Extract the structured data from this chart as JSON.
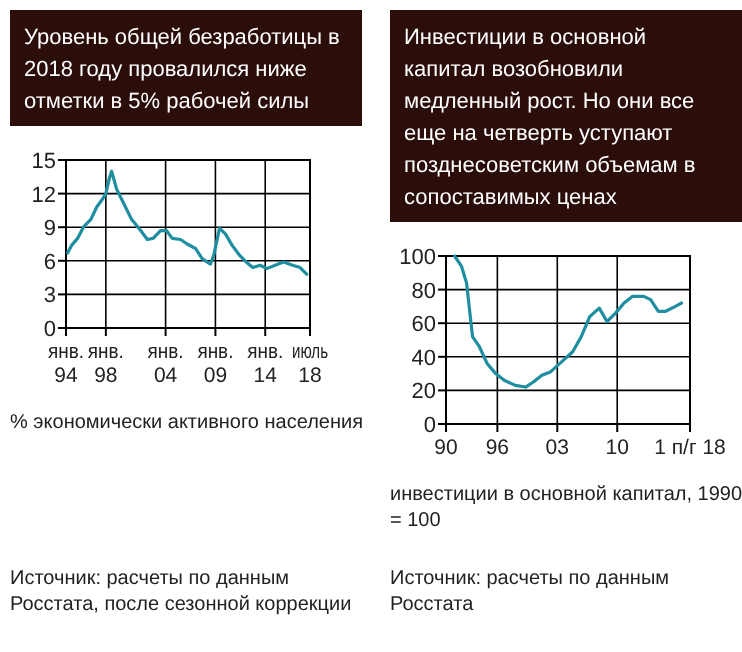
{
  "chart_data": [
    {
      "type": "line",
      "title": "Уровень общей безработицы в 2018 году провалился ниже отметки в 5% рабочей силы",
      "xlabel": "% экономически активного населения",
      "annotations": [
        "Источник: расчеты по данным Росстата, после сезонной коррекции"
      ],
      "x": [
        "1994-03",
        "1994-08",
        "1995-03",
        "1995-10",
        "1996-07",
        "1997-02",
        "1997-08",
        "1998-01",
        "1998-05",
        "1998-08",
        "1999-02",
        "1999-10",
        "2000-08",
        "2001-07",
        "2002-03",
        "2002-10",
        "2003-07",
        "2004-02",
        "2004-09",
        "2005-07",
        "2006-03",
        "2007-01",
        "2007-09",
        "2008-07",
        "2008-11",
        "2009-06",
        "2010-01",
        "2010-09",
        "2011-06",
        "2012-02",
        "2012-10",
        "2013-07",
        "2014-03",
        "2015-01",
        "2015-11",
        "2016-10",
        "2017-07",
        "2018-03"
      ],
      "series": [
        {
          "color": "#1f8ea0",
          "values": [
            6.7,
            7.4,
            8.0,
            9.0,
            9.7,
            10.8,
            11.4,
            12.0,
            13.3,
            14.0,
            12.4,
            11.2,
            9.7,
            8.7,
            7.9,
            8.0,
            8.7,
            8.7,
            8.0,
            7.9,
            7.5,
            7.1,
            6.2,
            5.7,
            6.5,
            8.9,
            8.4,
            7.4,
            6.5,
            5.9,
            5.4,
            5.6,
            5.3,
            5.6,
            5.9,
            5.6,
            5.4,
            4.8
          ]
        }
      ],
      "xlim": [
        "1994-01",
        "2018-07"
      ],
      "xticks": [
        {
          "value": "1994-01",
          "label": "янв.\n94"
        },
        {
          "value": "1998-01",
          "label": "янв.\n98"
        },
        {
          "value": "2004-01",
          "label": "янв.\n04"
        },
        {
          "value": "2009-01",
          "label": "янв.\n09"
        },
        {
          "value": "2014-01",
          "label": "янв.\n14"
        },
        {
          "value": "2018-07",
          "label": "июль\n18"
        }
      ],
      "ylim": [
        0,
        15
      ],
      "yticks": [
        0,
        3,
        6,
        9,
        12,
        15
      ],
      "grid": true,
      "line_style": "solid"
    },
    {
      "type": "line",
      "title": "Инвестиции в основной капитал возобновили медленный рост. Но они все еще на четверть уступают позднесоветским объемам в сопоставимых ценах",
      "xlabel": "инвестиции в основной капитал, 1990 = 100",
      "annotations": [
        "Источник: расчеты по данным Росстата"
      ],
      "x": [
        1991.0,
        1991.8,
        1992.4,
        1993.1,
        1993.9,
        1994.8,
        1995.8,
        1996.8,
        1998.1,
        1999.3,
        2000.2,
        2001.2,
        2002.2,
        2003.5,
        2004.8,
        2005.8,
        2006.8,
        2007.9,
        2008.8,
        2009.8,
        2010.8,
        2011.8,
        2013.1,
        2013.9,
        2014.8,
        2015.6,
        2016.8,
        2017.5
      ],
      "series": [
        {
          "color": "#1f8ea0",
          "values": [
            100,
            94,
            84,
            52,
            46,
            36,
            30,
            26,
            23,
            22,
            25,
            29,
            31,
            37,
            43,
            52,
            64,
            69,
            61,
            66,
            72,
            76,
            76,
            74,
            67,
            67,
            70,
            72
          ]
        }
      ],
      "xlim": [
        1990,
        2018.5
      ],
      "xticks": [
        {
          "value": 1990,
          "label": "90"
        },
        {
          "value": 1996,
          "label": "96"
        },
        {
          "value": 2003,
          "label": "03"
        },
        {
          "value": 2010,
          "label": "10"
        },
        {
          "value": 2018.5,
          "label": "1 п/г 18"
        }
      ],
      "ylim": [
        0,
        100
      ],
      "yticks": [
        0,
        20,
        40,
        60,
        80,
        100
      ],
      "grid": true,
      "line_style": "solid"
    }
  ]
}
